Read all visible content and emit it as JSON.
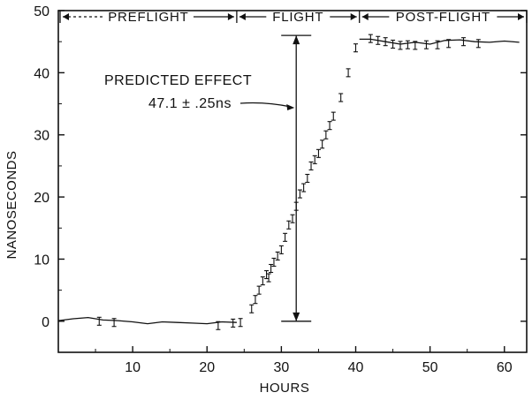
{
  "chart_data": {
    "type": "scatter",
    "title": "",
    "xlabel": "HOURS",
    "ylabel": "NANOSECONDS",
    "xlim": [
      0,
      63
    ],
    "ylim": [
      -5,
      50
    ],
    "x_ticks": [
      10,
      20,
      30,
      40,
      50,
      60
    ],
    "y_ticks": [
      0,
      10,
      20,
      30,
      40,
      50
    ],
    "x_tick_labels": [
      "10",
      "20",
      "30",
      "40",
      "50",
      "60"
    ],
    "y_tick_labels": [
      "0",
      "10",
      "20",
      "30",
      "40",
      "50"
    ],
    "grid": false,
    "legend": "none",
    "phases": [
      {
        "label": "PREFLIGHT",
        "x_start": 0,
        "x_end": 24
      },
      {
        "label": "FLIGHT",
        "x_start": 24,
        "x_end": 40.5
      },
      {
        "label": "POST-FLIGHT",
        "x_start": 40.5,
        "x_end": 63
      }
    ],
    "annotations": {
      "predicted_label": "PREDICTED EFFECT",
      "predicted_value": "47.1 ± .25ns",
      "arrow_x": 32,
      "arrow_y_bottom": 0,
      "arrow_y_top": 46
    },
    "preflight_curve": {
      "x": [
        0,
        2,
        4,
        6,
        8,
        10,
        12,
        14,
        16,
        18,
        20,
        22,
        24
      ],
      "y": [
        0.1,
        0.4,
        0.6,
        0.2,
        0.1,
        -0.1,
        -0.4,
        -0.1,
        -0.2,
        -0.3,
        -0.4,
        -0.1,
        -0.2
      ]
    },
    "postflight_curve": {
      "x": [
        40.5,
        42,
        44,
        46,
        48,
        50,
        52,
        54,
        56,
        58,
        60,
        62
      ],
      "y": [
        45.4,
        45.4,
        45.0,
        44.6,
        44.9,
        44.6,
        45.2,
        45.3,
        45.0,
        44.9,
        45.1,
        44.9
      ]
    },
    "series": [
      {
        "marker": "error-bar",
        "x": [
          5.5,
          7.5,
          21.5,
          23.5,
          24.5,
          26,
          26.5,
          27,
          27.5,
          28,
          28.3,
          28.6,
          29,
          29.5,
          30,
          30.5,
          31,
          31.5,
          32,
          32.5,
          33,
          33.5,
          34,
          34.5,
          35,
          35.5,
          36,
          36.5,
          37,
          38,
          39,
          40,
          42,
          43,
          44,
          45,
          46,
          47,
          48,
          49.5,
          51,
          52.5,
          54.5,
          56.5
        ],
        "y": [
          0,
          -0.2,
          -0.7,
          -0.3,
          -0.2,
          2,
          3.5,
          5,
          6.5,
          7.5,
          7,
          8.5,
          9.5,
          10.5,
          11.5,
          13.5,
          15.5,
          16.5,
          18.5,
          20.5,
          21.5,
          23,
          25,
          26,
          27,
          28.5,
          30,
          31.5,
          33,
          36,
          40,
          44,
          45.5,
          45.2,
          45,
          44.6,
          44.4,
          44.5,
          44.4,
          44.5,
          44.5,
          44.7,
          45.0,
          44.7
        ]
      }
    ]
  }
}
